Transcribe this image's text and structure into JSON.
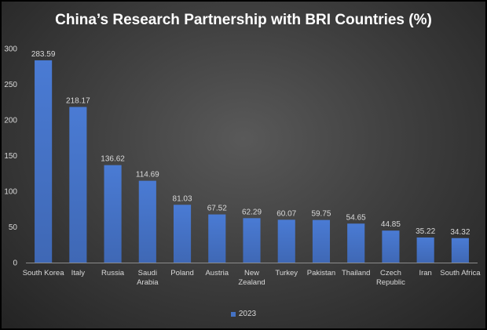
{
  "chart_data": {
    "type": "bar",
    "title": "China’s Research Partnership with BRI Countries (%)",
    "xlabel": "",
    "ylabel": "",
    "categories": [
      [
        "South Korea"
      ],
      [
        "Italy"
      ],
      [
        "Russia"
      ],
      [
        "Saudi",
        "Arabia"
      ],
      [
        "Poland"
      ],
      [
        "Austria"
      ],
      [
        "New",
        "Zealand"
      ],
      [
        "Turkey"
      ],
      [
        "Pakistan"
      ],
      [
        "Thailand"
      ],
      [
        "Czech",
        "Republic"
      ],
      [
        "Iran"
      ],
      [
        "South Africa"
      ]
    ],
    "series": [
      {
        "name": "2023",
        "values": [
          283.59,
          218.17,
          136.62,
          114.69,
          81.03,
          67.52,
          62.29,
          60.07,
          59.75,
          54.65,
          44.85,
          35.22,
          34.32
        ],
        "labels": [
          "283.59",
          "218.17",
          "136.62",
          "114.69",
          "81.03",
          "67.52",
          "62.29",
          "60.07",
          "59.75",
          "54.65",
          "44.85",
          "35.22",
          "34.32"
        ]
      }
    ],
    "ylim": [
      0,
      300
    ],
    "yticks": [
      0,
      50,
      100,
      150,
      200,
      250,
      300
    ],
    "grid": false,
    "legend": "bottom",
    "colors": {
      "bar": "#4472c4",
      "bar_light": "#5b8be0",
      "text": "#d9d9d9",
      "axis": "#8c8c8c"
    }
  }
}
